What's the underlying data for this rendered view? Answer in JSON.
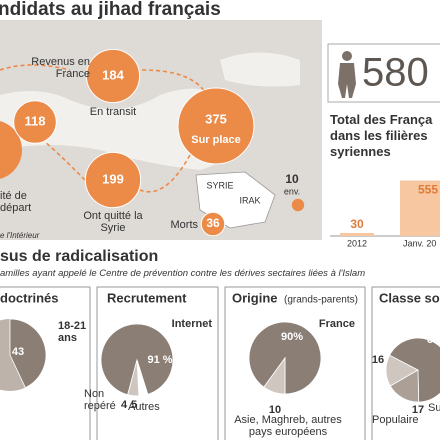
{
  "map": {
    "title": "ndidats au jihad français",
    "bubbles": [
      {
        "label": "Revenus en France",
        "value": 118
      },
      {
        "label": "En transit",
        "value": 184
      },
      {
        "label": "Sur place",
        "value": 375
      },
      {
        "label": "Ont quitté la Syrie",
        "value": 199
      },
      {
        "label": "Morts",
        "value": 36
      }
    ],
    "departure_label": "ité de départ",
    "places": [
      "SYRIE",
      "IRAK"
    ],
    "iraq": {
      "value": 10,
      "note": "env."
    },
    "source": "e l'Intérieur",
    "color": "#ec8a48"
  },
  "total": {
    "value": 580,
    "title": "Total des França dans les filières syriennes",
    "bars": {
      "categories": [
        "2012",
        "Janv. 20"
      ],
      "values": [
        30,
        555
      ],
      "color": "#f6c7a1",
      "label_color": "#e07b39"
    }
  },
  "radicalisation": {
    "title": "sus de radicalisation",
    "subtitle": "amilles ayant appelé le Centre de prévention contre les dérives sectaires liées à l'Islam",
    "panels": [
      {
        "title": "doctrinés",
        "slices": [
          {
            "name": "18-21 ans",
            "value": 43,
            "color": "#8b7e75"
          }
        ]
      },
      {
        "title": "Recrutement",
        "slices": [
          {
            "name": "Internet",
            "value": 91,
            "value_label": "91 %",
            "color": "#8b7e75"
          },
          {
            "name": "Non repéré",
            "value": 4,
            "color": "#ffffff"
          },
          {
            "name": "Autres",
            "value": 5,
            "color": "#cfc7bf"
          }
        ]
      },
      {
        "title": "Origine",
        "subtitle": "(grands-parents)",
        "slices": [
          {
            "name": "France",
            "value": 90,
            "value_label": "90%",
            "color": "#8b7e75"
          },
          {
            "name": "Asie, Maghreb, autres pays européens",
            "value": 10,
            "color": "#cfc7bf"
          }
        ]
      },
      {
        "title": "Classe soc",
        "slices": [
          {
            "name": "Populaire",
            "value": 16,
            "color": "#cfc7bf"
          },
          {
            "value": 67,
            "color": "#8b7e75"
          },
          {
            "name": "Su",
            "value": 17,
            "color": "#ab9f96"
          }
        ]
      }
    ]
  }
}
